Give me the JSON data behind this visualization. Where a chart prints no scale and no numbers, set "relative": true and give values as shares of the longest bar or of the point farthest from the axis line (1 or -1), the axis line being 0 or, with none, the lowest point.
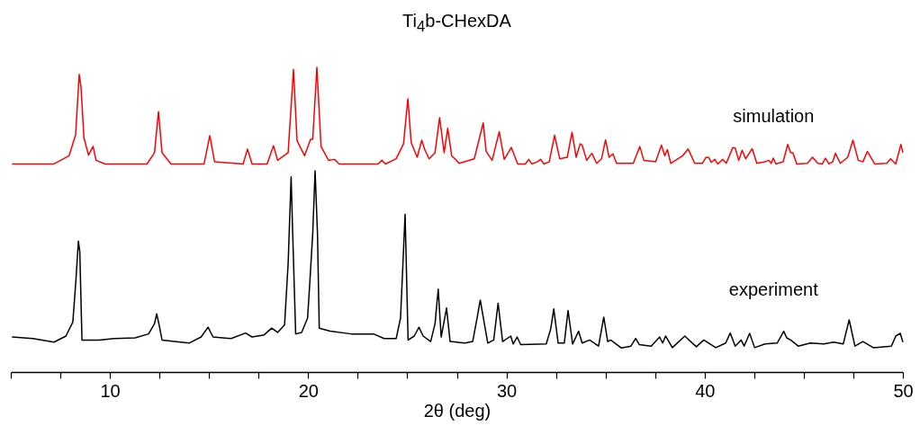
{
  "chart_data": {
    "type": "line",
    "title": "Ti$_{4}$b-CHexDA",
    "xlabel": "2θ (deg)",
    "relative": true,
    "legend": false,
    "marker": "none",
    "line_style": "solid",
    "grid": false,
    "xlim": [
      5,
      50
    ],
    "xticks": [
      {
        "value": 5,
        "label": null
      },
      {
        "value": 7.5,
        "label": null
      },
      10,
      {
        "value": 12.5,
        "label": null
      },
      {
        "value": 15,
        "label": null
      },
      {
        "value": 17.5,
        "label": null
      },
      20,
      {
        "value": 22.5,
        "label": null
      },
      {
        "value": 25,
        "label": null
      },
      {
        "value": 27.5,
        "label": null
      },
      30,
      {
        "value": 32.5,
        "label": null
      },
      {
        "value": 35,
        "label": null
      },
      {
        "value": 37.5,
        "label": null
      },
      40,
      {
        "value": 42.5,
        "label": null
      },
      {
        "value": 45,
        "label": null
      },
      {
        "value": 47.5,
        "label": null
      },
      50
    ],
    "series": [
      {
        "name": "simulation",
        "color": "#ff0000",
        "x": [
          5.06,
          7.18,
          7.94,
          8.27,
          8.45,
          8.54,
          8.69,
          8.92,
          9.15,
          9.3,
          9.75,
          11.87,
          12.25,
          12.45,
          12.63,
          13.08,
          14.75,
          15.04,
          15.28,
          16.72,
          16.94,
          17.17,
          17.93,
          18.25,
          18.46,
          18.99,
          19.26,
          19.44,
          19.82,
          20.12,
          20.23,
          20.44,
          20.65,
          21.03,
          21.33,
          21.56,
          23.53,
          23.72,
          23.9,
          24.44,
          24.81,
          25.03,
          25.2,
          25.5,
          25.73,
          25.88,
          26.1,
          26.4,
          26.63,
          26.86,
          27.04,
          27.24,
          27.62,
          28.38,
          28.83,
          28.98,
          29.28,
          29.64,
          29.89,
          30.25,
          30.57,
          30.95,
          31.13,
          31.28,
          31.55,
          31.73,
          31.89,
          32.16,
          32.43,
          32.69,
          33.07,
          33.31,
          33.52,
          33.72,
          33.82,
          34.05,
          34.31,
          34.55,
          34.8,
          35.0,
          35.18,
          35.37,
          35.56,
          36.4,
          36.73,
          36.93,
          37.53,
          37.82,
          37.99,
          38.12,
          38.29,
          38.89,
          39.17,
          39.5,
          39.88,
          40.06,
          40.21,
          40.33,
          40.51,
          40.66,
          40.91,
          41.09,
          41.42,
          41.54,
          41.72,
          41.89,
          42.07,
          42.4,
          42.63,
          43.05,
          43.24,
          43.36,
          43.46,
          43.59,
          43.96,
          44.19,
          44.34,
          44.45,
          44.65,
          45.18,
          45.44,
          45.71,
          45.94,
          46.09,
          46.27,
          46.46,
          46.6,
          46.84,
          47.22,
          47.48,
          47.75,
          47.98,
          48.21,
          48.58,
          49.19,
          49.38,
          49.64,
          49.9,
          50.0
        ],
        "values": [
          0.683,
          0.683,
          0.71,
          0.779,
          0.977,
          0.936,
          0.769,
          0.712,
          0.741,
          0.695,
          0.683,
          0.683,
          0.72,
          0.855,
          0.72,
          0.683,
          0.683,
          0.776,
          0.69,
          0.683,
          0.732,
          0.683,
          0.683,
          0.743,
          0.695,
          0.72,
          0.993,
          0.759,
          0.71,
          0.764,
          0.764,
          1.0,
          0.74,
          0.695,
          0.698,
          0.683,
          0.683,
          0.695,
          0.683,
          0.7,
          0.749,
          0.897,
          0.752,
          0.705,
          0.761,
          0.73,
          0.7,
          0.72,
          0.835,
          0.72,
          0.8,
          0.71,
          0.685,
          0.7,
          0.818,
          0.724,
          0.695,
          0.789,
          0.698,
          0.737,
          0.683,
          0.683,
          0.698,
          0.683,
          0.69,
          0.698,
          0.683,
          0.69,
          0.777,
          0.7,
          0.705,
          0.787,
          0.705,
          0.749,
          0.745,
          0.695,
          0.718,
          0.685,
          0.7,
          0.762,
          0.705,
          0.716,
          0.685,
          0.685,
          0.74,
          0.695,
          0.69,
          0.745,
          0.71,
          0.73,
          0.685,
          0.71,
          0.732,
          0.685,
          0.685,
          0.704,
          0.704,
          0.688,
          0.698,
          0.683,
          0.698,
          0.685,
          0.737,
          0.735,
          0.695,
          0.728,
          0.7,
          0.733,
          0.685,
          0.69,
          0.695,
          0.685,
          0.702,
          0.683,
          0.69,
          0.747,
          0.72,
          0.72,
          0.683,
          0.685,
          0.705,
          0.685,
          0.683,
          0.702,
          0.683,
          0.69,
          0.718,
          0.685,
          0.705,
          0.761,
          0.695,
          0.69,
          0.724,
          0.683,
          0.685,
          0.7,
          0.683,
          0.747,
          0.72
        ]
      },
      {
        "name": "experiment",
        "color": "#000000",
        "x": [
          5.06,
          6.12,
          7.18,
          7.78,
          8.13,
          8.28,
          8.41,
          8.48,
          8.59,
          9.45,
          10.21,
          11.27,
          11.95,
          12.25,
          12.36,
          12.48,
          12.63,
          13.99,
          14.6,
          14.95,
          15.2,
          16.11,
          16.84,
          17.17,
          17.78,
          18.16,
          18.46,
          18.81,
          18.99,
          19.14,
          19.22,
          19.37,
          19.67,
          19.97,
          20.05,
          20.23,
          20.35,
          20.47,
          20.56,
          21.11,
          22.17,
          23.3,
          23.83,
          24.44,
          24.66,
          24.89,
          25.04,
          25.35,
          25.59,
          25.8,
          26.18,
          26.4,
          26.56,
          26.71,
          26.98,
          27.16,
          27.92,
          28.3,
          28.53,
          28.68,
          28.83,
          29.06,
          29.36,
          29.58,
          29.81,
          30.22,
          30.34,
          30.54,
          30.72,
          32.01,
          32.23,
          32.39,
          32.61,
          32.92,
          33.11,
          33.34,
          33.64,
          33.82,
          34.2,
          34.65,
          34.91,
          35.11,
          35.26,
          35.79,
          36.28,
          36.52,
          36.7,
          37.3,
          37.73,
          37.88,
          38.03,
          38.37,
          39.0,
          39.58,
          39.96,
          40.56,
          41.06,
          41.29,
          41.54,
          41.84,
          41.99,
          42.27,
          42.52,
          43.05,
          43.66,
          43.99,
          44.14,
          44.34,
          44.72,
          45.33,
          46.01,
          46.51,
          46.99,
          47.29,
          47.58,
          47.98,
          48.51,
          49.42,
          49.64,
          49.87,
          50.0
        ],
        "values": [
          0.115,
          0.11,
          0.098,
          0.118,
          0.164,
          0.297,
          0.43,
          0.395,
          0.105,
          0.105,
          0.11,
          0.112,
          0.125,
          0.159,
          0.191,
          0.155,
          0.105,
          0.095,
          0.115,
          0.147,
          0.115,
          0.11,
          0.128,
          0.115,
          0.122,
          0.144,
          0.13,
          0.155,
          0.356,
          0.641,
          0.454,
          0.125,
          0.13,
          0.177,
          0.258,
          0.454,
          0.661,
          0.454,
          0.144,
          0.134,
          0.125,
          0.125,
          0.11,
          0.11,
          0.177,
          0.518,
          0.105,
          0.118,
          0.147,
          0.118,
          0.1,
          0.159,
          0.272,
          0.115,
          0.21,
          0.1,
          0.095,
          0.1,
          0.18,
          0.236,
          0.18,
          0.095,
          0.105,
          0.226,
          0.1,
          0.118,
          0.092,
          0.115,
          0.09,
          0.092,
          0.14,
          0.207,
          0.095,
          0.095,
          0.202,
          0.092,
          0.134,
          0.095,
          0.105,
          0.085,
          0.18,
          0.1,
          0.105,
          0.079,
          0.085,
          0.11,
          0.09,
          0.085,
          0.115,
          0.095,
          0.118,
          0.08,
          0.118,
          0.083,
          0.105,
          0.08,
          0.095,
          0.128,
          0.085,
          0.105,
          0.085,
          0.127,
          0.08,
          0.092,
          0.095,
          0.134,
          0.112,
          0.105,
          0.085,
          0.095,
          0.092,
          0.098,
          0.092,
          0.171,
          0.085,
          0.1,
          0.08,
          0.085,
          0.118,
          0.127,
          0.098
        ]
      }
    ]
  }
}
